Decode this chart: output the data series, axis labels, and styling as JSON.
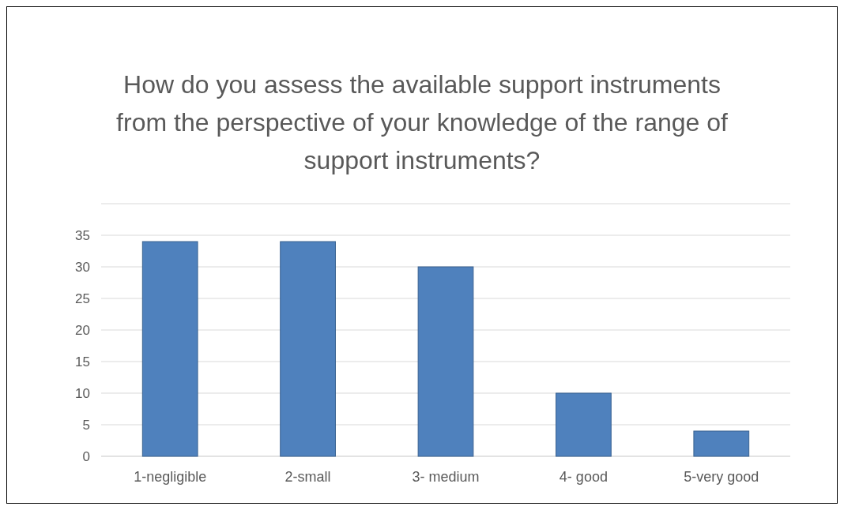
{
  "chart_data": {
    "type": "bar",
    "title": "How do you assess the available support instruments from the perspective of your knowledge of the range of support instruments?",
    "categories": [
      "1-negligible",
      "2-small",
      "3- medium",
      "4- good",
      "5-very good"
    ],
    "values": [
      34,
      34,
      30,
      10,
      4
    ],
    "color": "#4f81bd",
    "ylim": [
      0,
      40
    ],
    "yticks": [
      0,
      5,
      10,
      15,
      20,
      25,
      30,
      35,
      {
        "value": 40,
        "label": null
      }
    ],
    "grid": "y"
  }
}
